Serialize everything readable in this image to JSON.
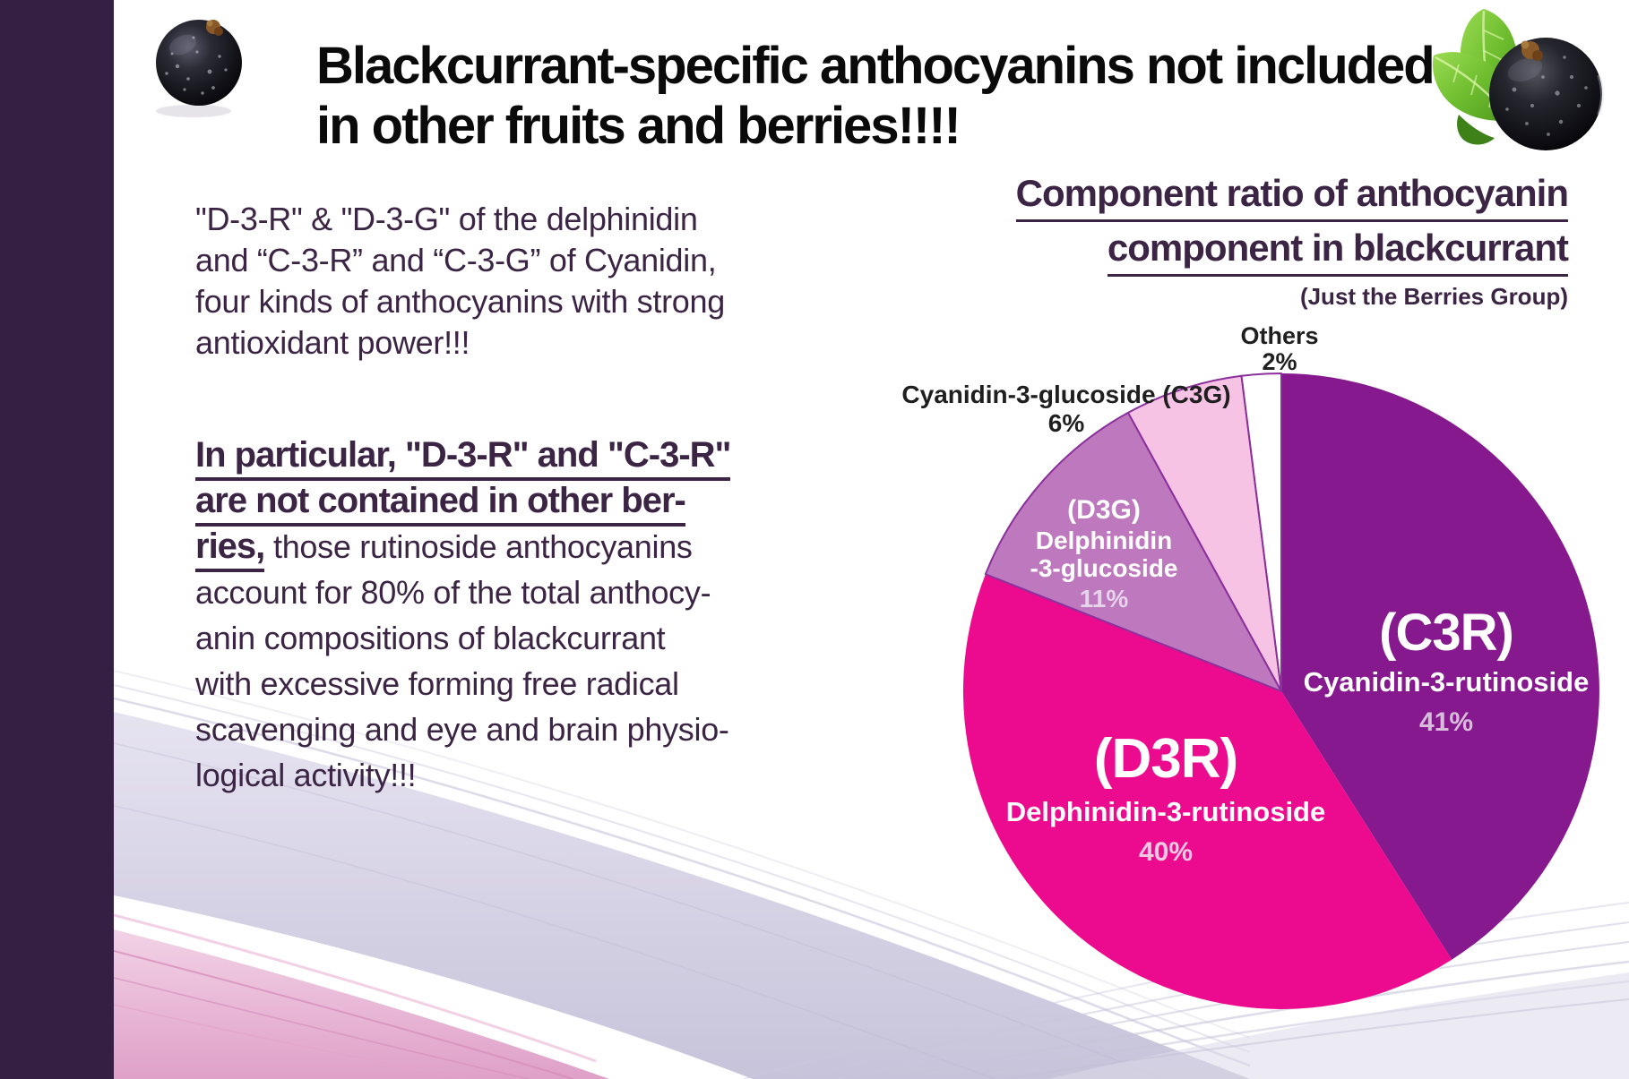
{
  "page": {
    "background": "#FFFFFF",
    "left_bar_color": "#352043",
    "accent_text_color": "#3B2444"
  },
  "header": {
    "title_line1": "Blackcurrant-specific anthocyanins not included",
    "title_line2": "in other fruits and berries!!!!"
  },
  "left_text": {
    "para1_lines": [
      "\"D-3-R\" & \"D-3-G\" of the delphinidin",
      "and “C-3-R” and “C-3-G” of Cyanidin,",
      "four kinds of anthocyanins with strong",
      "antioxidant power!!!"
    ],
    "para2_underlined_line1": "In particular, \"D-3-R\" and \"C-3-R\"",
    "para2_underlined_line2": "are not contained in other ber-",
    "para2_line3_underlined": "ries,",
    "para2_line3_rest": " those rutinoside anthocyanins",
    "para2_rest_lines": [
      "account for 80% of the total anthocy-",
      "anin compositions of blackcurrant",
      "with excessive forming free radical",
      "scavenging and eye and brain physio-",
      "logical activity!!!"
    ]
  },
  "chart": {
    "title_line1": "Component ratio of anthocyanin",
    "title_line2": "component in blackcurrant",
    "subtitle": "(Just the Berries Group)"
  },
  "chart_data": {
    "type": "pie",
    "title": "Component ratio of anthocyanin component in blackcurrant",
    "subtitle": "(Just the Berries Group)",
    "start_angle_deg": 0,
    "direction": "clockwise",
    "legend_position": "labels-on-and-around-pie",
    "slices": [
      {
        "abbr": "(C3R)",
        "name": "Cyanidin-3-rutinoside",
        "value": 41,
        "pct_label": "41%",
        "color": "#85198D",
        "label_color": "#FFFFFF",
        "pct_color": "#D8BCDC"
      },
      {
        "abbr": "(D3R)",
        "name": "Delphinidin-3-rutinoside",
        "value": 40,
        "pct_label": "40%",
        "color": "#EC0B8E",
        "label_color": "#FFFFFF",
        "pct_color": "#F4C8E2"
      },
      {
        "abbr": "(D3G)",
        "name_line1": "Delphinidin",
        "name_line2": "-3-glucoside",
        "value": 11,
        "pct_label": "11%",
        "color": "#BE78BE",
        "stroke": "#8B2F9B",
        "label_color": "#FFFFFF",
        "pct_color": "#E6D4EA"
      },
      {
        "abbr": "(C3G)",
        "name": "Cyanidin-3-glucoside",
        "label": "Cyanidin-3-glucoside (C3G)",
        "value": 6,
        "pct_label": "6%",
        "color": "#F6C3E5",
        "stroke": "#8B2F9B",
        "label_color": "#1F1F1F"
      },
      {
        "abbr": "Others",
        "name": "Others",
        "value": 2,
        "pct_label": "2%",
        "color": "#FFFFFF",
        "stroke": "#8B2F9B",
        "label_color": "#1F1F1F"
      }
    ]
  }
}
